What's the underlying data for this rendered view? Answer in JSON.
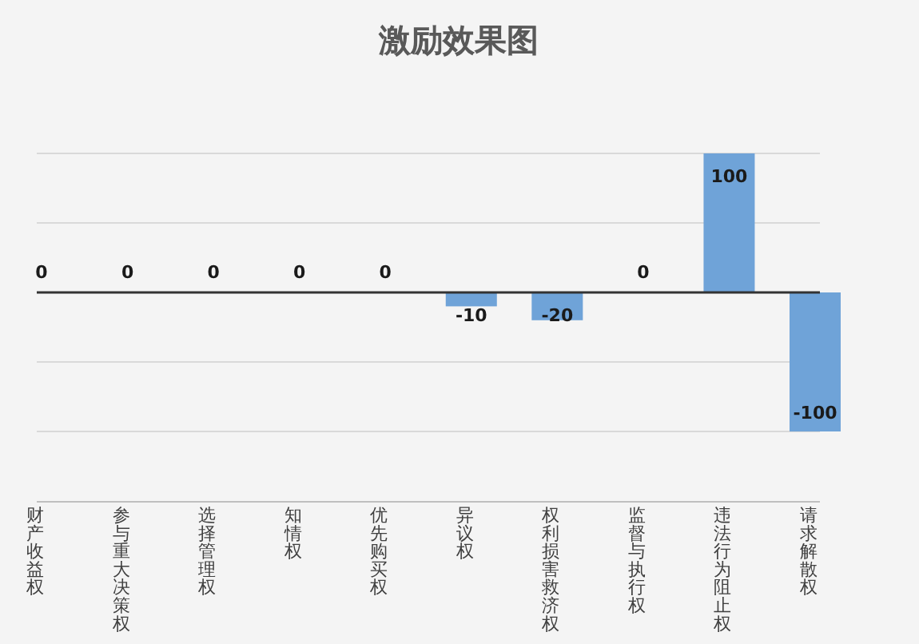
{
  "chart_data": {
    "type": "bar",
    "title": "激励效果图",
    "categories": [
      "财产收益权",
      "参与重大决策权",
      "选择管理权",
      "知情权",
      "优先购买权",
      "异议权",
      "权利损害救济权",
      "监督与执行权",
      "违法行为阻止权",
      "请求解散权"
    ],
    "values": [
      0,
      0,
      0,
      0,
      0,
      -10,
      -20,
      0,
      100,
      -100
    ],
    "color": "#6fa3d8",
    "ylim": [
      -100,
      100
    ],
    "yticks": [
      {
        "value": -100,
        "label": null
      },
      {
        "value": -50,
        "label": null
      },
      {
        "value": 0,
        "label": null
      },
      {
        "value": 50,
        "label": null
      },
      {
        "value": 100,
        "label": null
      }
    ],
    "grid": "y",
    "tick_labels": "x",
    "data_labels": true
  }
}
